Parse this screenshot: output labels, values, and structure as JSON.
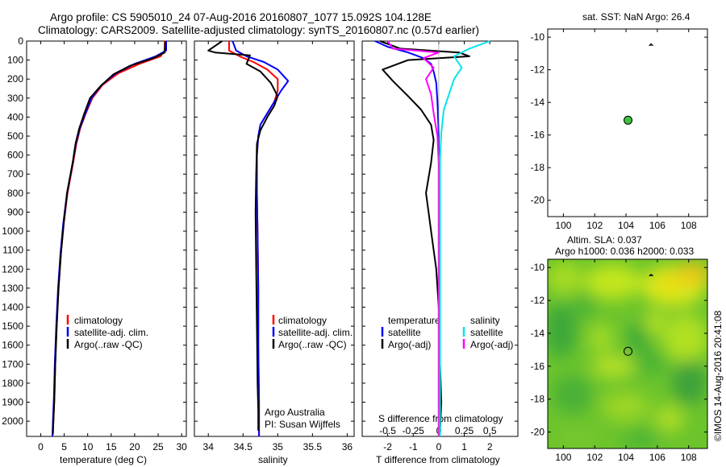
{
  "header": {
    "line1": "Argo profile: CS 5905010_24 07-Aug-2016 20160807_1077 15.092S 104.128E",
    "line2": "Climatology: CARS2009. Satellite-adjusted climatology: synTS_20160807.nc (0.57d earlier)"
  },
  "footer_stamp": "©IMOS 14-Aug-2016 20:41:08",
  "colors": {
    "red": "#ff0000",
    "blue": "#0000ff",
    "black": "#000000",
    "cyan": "#00e5ee",
    "magenta": "#ff00ff",
    "marker_green": "#3cc43c"
  },
  "chart_data": [
    {
      "type": "line",
      "id": "temperature",
      "xlabel": "temperature (deg C)",
      "xlim": [
        -3,
        31
      ],
      "ylim": [
        2080,
        0
      ],
      "xticks": [
        0,
        5,
        10,
        15,
        20,
        25,
        30
      ],
      "yticks": [
        0,
        100,
        200,
        300,
        400,
        500,
        600,
        700,
        800,
        900,
        1000,
        1100,
        1200,
        1300,
        1400,
        1500,
        1600,
        1700,
        1800,
        1900,
        2000
      ],
      "legend": [
        "climatology",
        "satellite-adj. clim.",
        "Argo(..raw -QC)"
      ],
      "series": [
        {
          "name": "climatology",
          "color": "#ff0000",
          "x": [
            26.4,
            26.4,
            25.5,
            21,
            16.5,
            13.2,
            11,
            9.6,
            8.4,
            7.6,
            6.9,
            5.7,
            4.9,
            4.3,
            3.8,
            3.4,
            3.1,
            2.9,
            2.7,
            2.5
          ],
          "y": [
            0,
            50,
            80,
            120,
            170,
            230,
            300,
            380,
            460,
            540,
            640,
            800,
            960,
            1120,
            1300,
            1500,
            1700,
            1880,
            2000,
            2080
          ]
        },
        {
          "name": "satellite-adj. clim.",
          "color": "#0000ff",
          "x": [
            26.7,
            26.7,
            24.5,
            20,
            16,
            13,
            10.8,
            9.5,
            8.3,
            7.5,
            6.8,
            5.6,
            4.8,
            4.2,
            3.7,
            3.3,
            3.0,
            2.8,
            2.6,
            2.5
          ],
          "y": [
            0,
            50,
            80,
            120,
            170,
            230,
            300,
            380,
            460,
            540,
            640,
            800,
            960,
            1120,
            1300,
            1500,
            1700,
            1880,
            2000,
            2080
          ]
        },
        {
          "name": "Argo(..raw -QC)",
          "color": "#000000",
          "x": [
            26.5,
            26.4,
            24,
            19,
            15.5,
            12.8,
            10.5,
            9.3,
            8.2,
            7.4,
            6.8,
            5.6,
            4.9,
            4.3,
            3.8,
            3.4,
            3.1,
            2.9,
            2.7,
            2.6
          ],
          "y": [
            5,
            60,
            90,
            130,
            175,
            235,
            300,
            380,
            460,
            540,
            640,
            800,
            960,
            1120,
            1300,
            1500,
            1700,
            1880,
            2000,
            2070
          ]
        }
      ]
    },
    {
      "type": "line",
      "id": "salinity",
      "xlabel": "salinity",
      "xlim": [
        33.8,
        36.1
      ],
      "ylim": [
        2080,
        0
      ],
      "xticks": [
        34,
        34.5,
        35,
        35.5,
        36
      ],
      "legend": [
        "climatology",
        "satellite-adj. clim.",
        "Argo(..raw -QC)"
      ],
      "annotation": [
        "Argo Australia",
        "PI: Susan Wijffels"
      ],
      "series": [
        {
          "name": "climatology",
          "color": "#ff0000",
          "x": [
            34.3,
            34.3,
            34.45,
            34.65,
            34.85,
            35.0,
            35.0,
            34.95,
            34.85,
            34.75,
            34.72,
            34.7,
            34.7,
            34.71,
            34.72,
            34.72,
            34.73,
            34.73,
            34.73
          ],
          "y": [
            0,
            50,
            80,
            110,
            150,
            200,
            260,
            320,
            380,
            440,
            500,
            600,
            800,
            1000,
            1300,
            1600,
            1900,
            2000,
            2080
          ]
        },
        {
          "name": "satellite-adj. clim.",
          "color": "#0000ff",
          "x": [
            34.35,
            34.4,
            34.55,
            34.8,
            35.0,
            35.15,
            35.05,
            34.95,
            34.85,
            34.75,
            34.72,
            34.7,
            34.7,
            34.71,
            34.72,
            34.72,
            34.73,
            34.73,
            34.73
          ],
          "y": [
            0,
            50,
            80,
            110,
            150,
            210,
            260,
            320,
            380,
            440,
            500,
            600,
            800,
            1000,
            1300,
            1600,
            1900,
            2000,
            2080
          ]
        },
        {
          "name": "Argo(..raw -QC)",
          "color": "#000000",
          "x": [
            34.2,
            34.0,
            34.1,
            34.6,
            34.55,
            34.75,
            34.9,
            35.0,
            34.95,
            34.85,
            34.75,
            34.7,
            34.69,
            34.68,
            34.69,
            34.7,
            34.71,
            34.72,
            34.72
          ],
          "y": [
            0,
            50,
            60,
            75,
            120,
            160,
            220,
            290,
            340,
            400,
            470,
            540,
            700,
            900,
            1200,
            1500,
            1800,
            1950,
            2050
          ]
        }
      ]
    },
    {
      "type": "line",
      "id": "difference",
      "xlabel": "T difference from climatology",
      "xlabel_top": "S difference from climatology",
      "xlim": [
        -3,
        3.1
      ],
      "ylim": [
        2080,
        0
      ],
      "xticks_bottom": [
        -2,
        -1,
        0,
        1,
        2
      ],
      "xticks_top": [
        "-0.5",
        "-0.25",
        "0",
        "0.25",
        "0.5"
      ],
      "legend_temperature": {
        "title": "temperature",
        "items": [
          "satellite",
          "Argo(-adj)"
        ]
      },
      "legend_salinity": {
        "title": "salinity",
        "items": [
          "satellite",
          "Argo(-adj)"
        ]
      },
      "series": [
        {
          "name": "satellite",
          "group": "temperature",
          "color": "#0000ff",
          "x": [
            -2.5,
            -2,
            -1.2,
            -0.6,
            -0.3,
            -0.2,
            -0.1,
            -0.05,
            0,
            0,
            0
          ],
          "y": [
            0,
            30,
            60,
            90,
            120,
            160,
            220,
            320,
            500,
            1000,
            2080
          ]
        },
        {
          "name": "Argo(-adj)",
          "group": "temperature",
          "color": "#000000",
          "x": [
            -2.3,
            -1.5,
            0.8,
            1.2,
            -1.2,
            -2.2,
            -1.8,
            -1.2,
            -0.7,
            -0.3,
            -0.2,
            -0.3,
            -0.5,
            -0.4,
            -0.3,
            -0.1,
            0,
            0.05,
            0.1,
            0.05
          ],
          "y": [
            0,
            40,
            60,
            80,
            100,
            150,
            210,
            290,
            360,
            440,
            520,
            640,
            800,
            900,
            1000,
            1200,
            1400,
            1700,
            1900,
            2050
          ]
        },
        {
          "name": "satellite",
          "group": "salinity",
          "color": "#00e5ee",
          "x": [
            2,
            1.2,
            0.6,
            0.9,
            0.6,
            0.4,
            0.2,
            0.1,
            0.05,
            0.05,
            0.05
          ],
          "y": [
            0,
            40,
            80,
            140,
            200,
            280,
            360,
            480,
            620,
            1000,
            2080
          ]
        },
        {
          "name": "Argo(-adj)",
          "group": "salinity",
          "color": "#ff00ff",
          "x": [
            -2,
            -1.8,
            0,
            -0.6,
            -0.2,
            -0.5,
            -0.3,
            -0.2,
            -0.05,
            0,
            0,
            0
          ],
          "y": [
            0,
            40,
            60,
            90,
            140,
            200,
            280,
            380,
            500,
            650,
            1000,
            2080
          ]
        }
      ]
    },
    {
      "type": "scatter",
      "id": "map_sst",
      "title": "sat. SST: NaN Argo: 26.4",
      "xlim": [
        99,
        109.2
      ],
      "ylim": [
        -21,
        -9.5
      ],
      "xticks": [
        100,
        102,
        104,
        106,
        108
      ],
      "yticks": [
        -10,
        -12,
        -14,
        -16,
        -18,
        -20
      ],
      "points": [
        {
          "x": 104.128,
          "y": -15.092
        }
      ]
    },
    {
      "type": "heatmap",
      "id": "map_sla",
      "title_line1": "Altim. SLA: 0.037",
      "title_line2": "Argo h1000: 0.036 h2000: 0.033",
      "xlim": [
        99,
        109.2
      ],
      "ylim": [
        -21,
        -9.5
      ],
      "xticks": [
        100,
        102,
        104,
        106,
        108
      ],
      "yticks": [
        -10,
        -12,
        -14,
        -16,
        -18,
        -20
      ],
      "points": [
        {
          "x": 104.128,
          "y": -15.092
        }
      ]
    }
  ]
}
